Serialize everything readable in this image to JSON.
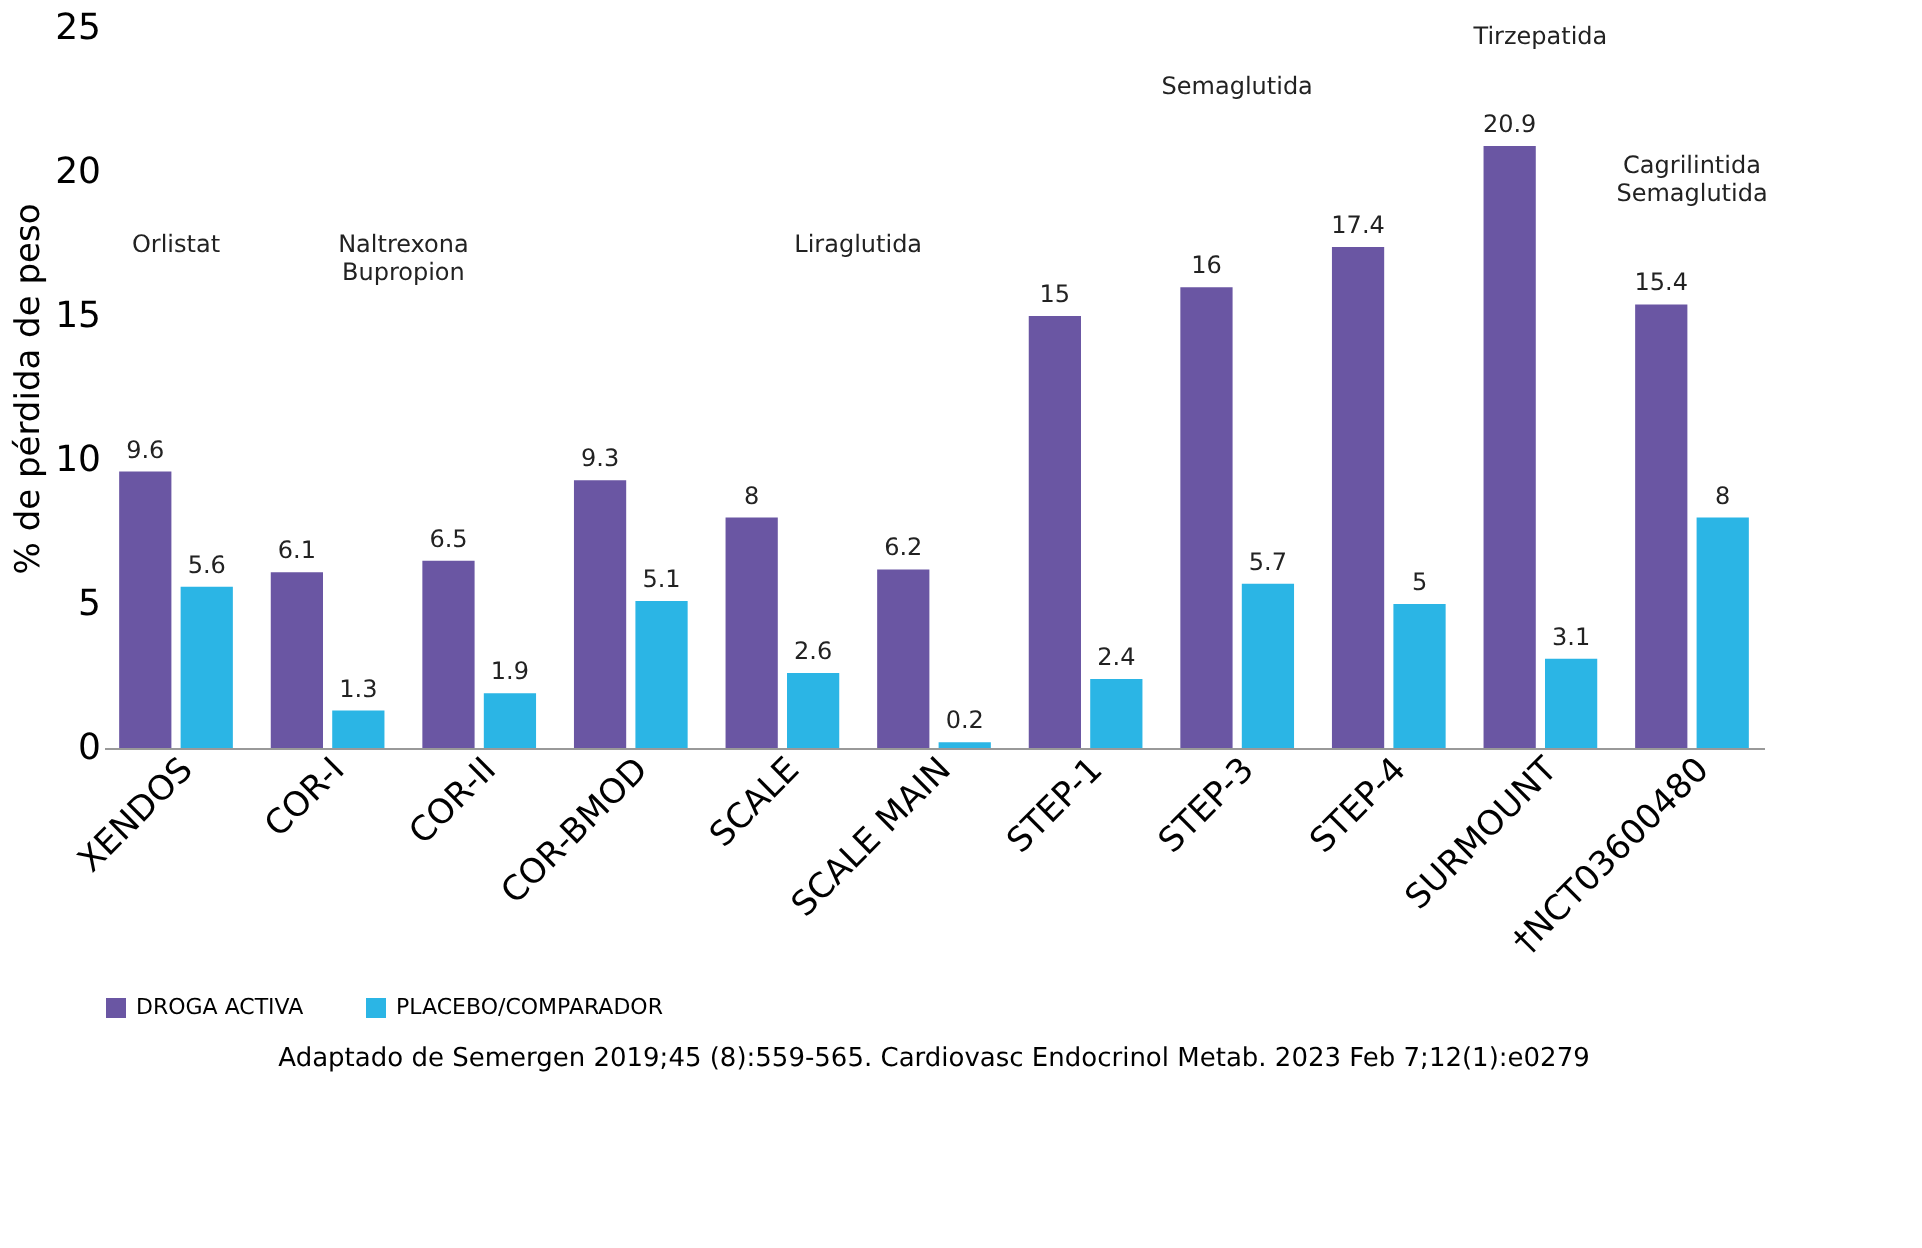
{
  "chart_data": {
    "type": "bar",
    "ylabel": "% de pérdida de peso",
    "categories": [
      "XENDOS",
      "COR-I",
      "COR-II",
      "COR-BMOD",
      "SCALE",
      "SCALE MAIN",
      "STEP-1",
      "STEP-3",
      "STEP-4",
      "SURMOUNT",
      "†NCT03600480"
    ],
    "series": [
      {
        "name": "DROGA ACTIVA",
        "color": "#6a56a3",
        "values": [
          9.6,
          6.1,
          6.5,
          9.3,
          8,
          6.2,
          15,
          16,
          17.4,
          20.9,
          15.4
        ]
      },
      {
        "name": "PLACEBO/COMPARADOR",
        "color": "#2bb5e5",
        "values": [
          5.6,
          1.3,
          1.9,
          5.1,
          2.6,
          0.2,
          2.4,
          5.7,
          5,
          3.1,
          8
        ]
      }
    ],
    "ylim": [
      0,
      25
    ],
    "yticks": [
      0,
      5,
      10,
      15,
      20,
      25
    ],
    "grid": false,
    "legend": "bottom",
    "data_labels": true,
    "annotations": [
      "Orlistat",
      "Naltrexona\nBupropion",
      "Liraglutida",
      "Semaglutida",
      "Tirzepatida",
      "Cagrilintida\nSemaglutida",
      "Adaptado de Semergen 2019;45 (8):559-565.  Cardiovasc Endocrinol Metab. 2023 Feb 7;12(1):e0279"
    ]
  }
}
